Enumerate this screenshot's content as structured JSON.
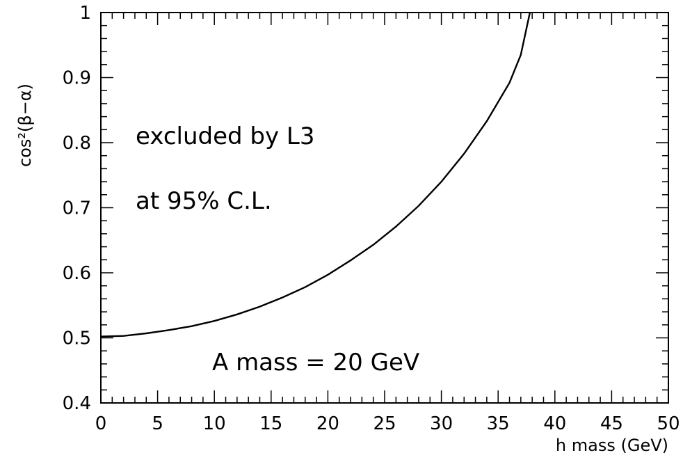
{
  "chart_data": {
    "type": "line",
    "title": "",
    "xlabel": "h mass (GeV)",
    "ylabel": "cos²(β−α)",
    "xlim": [
      0,
      50
    ],
    "ylim": [
      0.4,
      1.0
    ],
    "x_ticks": [
      "0",
      "5",
      "10",
      "15",
      "20",
      "25",
      "30",
      "35",
      "40",
      "45",
      "50"
    ],
    "y_ticks": [
      "0.4",
      "0.5",
      "0.6",
      "0.7",
      "0.8",
      "0.9",
      "1"
    ],
    "grid": false,
    "series": [
      {
        "name": "",
        "x": [
          0,
          2,
          4,
          6,
          8,
          10,
          12,
          14,
          16,
          18,
          20,
          22,
          24,
          26,
          28,
          30,
          32,
          34,
          36,
          37,
          37.8
        ],
        "y": [
          0.502,
          0.503,
          0.507,
          0.512,
          0.518,
          0.526,
          0.536,
          0.548,
          0.562,
          0.578,
          0.597,
          0.619,
          0.643,
          0.671,
          0.703,
          0.74,
          0.783,
          0.833,
          0.892,
          0.935,
          1.0
        ]
      }
    ],
    "annotations": [
      "excluded by L3",
      "at 95% C.L.",
      "A mass = 20 GeV"
    ]
  }
}
